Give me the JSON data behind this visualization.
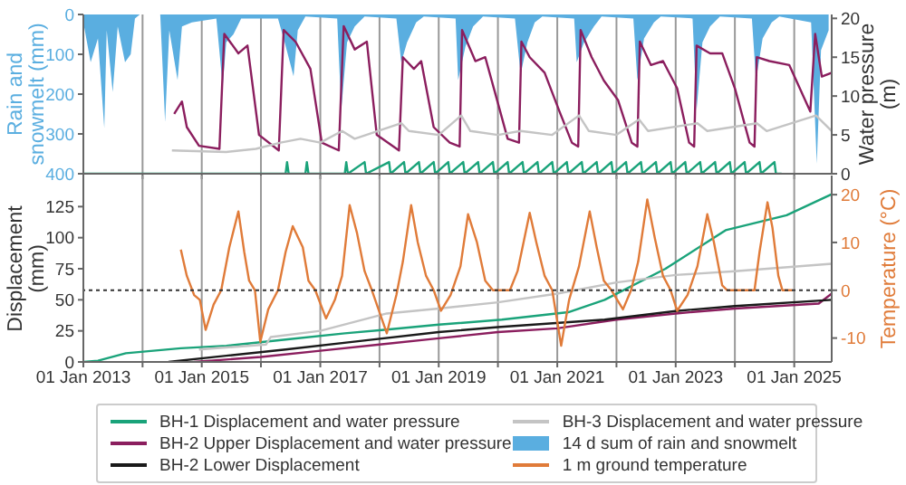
{
  "chart_data": [
    {
      "type": "line",
      "ylabel": "Rain and\nsnowmelt (mm)",
      "y2label": "Water pressure\n(m)",
      "xlim": [
        "2013-01-01",
        "2025-08-20"
      ],
      "xticks": [
        {
          "value": "2013-01-01",
          "label": null
        },
        {
          "value": "2014-01-01",
          "label": null
        },
        {
          "value": "2015-01-01",
          "label": null
        },
        {
          "value": "2016-01-01",
          "label": null
        },
        {
          "value": "2017-01-01",
          "label": null
        },
        {
          "value": "2018-01-01",
          "label": null
        },
        {
          "value": "2019-01-01",
          "label": null
        },
        {
          "value": "2020-01-01",
          "label": null
        },
        {
          "value": "2021-01-01",
          "label": null
        },
        {
          "value": "2022-01-01",
          "label": null
        },
        {
          "value": "2023-01-01",
          "label": null
        },
        {
          "value": "2024-01-01",
          "label": null
        },
        {
          "value": "2025-01-01",
          "label": null
        }
      ],
      "ylim": [
        400,
        0
      ],
      "yticks": [
        0,
        100,
        200,
        300,
        400
      ],
      "y2lim": [
        0,
        20.5
      ],
      "y2ticks": [
        0,
        5,
        10,
        15,
        20
      ],
      "grid": "x",
      "tick_labels": "y",
      "legend": "bottom",
      "series": [
        {
          "type": "area",
          "name": "14 d sum of rain and snowmelt",
          "color": "#5aaee0",
          "x": [
            "2013-01-01",
            "2013-02-15",
            "2013-04-01",
            "2013-05-10",
            "2013-05-25",
            "2013-07-01",
            "2013-08-01",
            "2013-09-15",
            "2013-10-20",
            "2013-11-15",
            "2013-12-15",
            "2014-04-20",
            "2014-05-20",
            "2014-06-15",
            "2014-08-05",
            "2014-09-01",
            "2014-11-01",
            "2015-04-01",
            "2015-05-10",
            "2015-06-01",
            "2015-07-15",
            "2015-09-01",
            "2016-04-15",
            "2016-05-20",
            "2016-07-20",
            "2016-08-15",
            "2016-10-01",
            "2017-04-15",
            "2017-05-10",
            "2017-06-15",
            "2017-08-01",
            "2017-10-01",
            "2018-04-15",
            "2018-05-15",
            "2018-06-20",
            "2018-08-15",
            "2018-10-01",
            "2019-04-15",
            "2019-05-01",
            "2019-06-15",
            "2019-08-01",
            "2019-10-01",
            "2020-04-15",
            "2020-05-20",
            "2020-07-01",
            "2020-08-15",
            "2020-10-01",
            "2021-04-15",
            "2021-05-01",
            "2021-06-15",
            "2021-08-15",
            "2021-10-01",
            "2022-04-15",
            "2022-05-10",
            "2022-06-20",
            "2022-08-20",
            "2022-10-01",
            "2023-04-15",
            "2023-05-10",
            "2023-06-15",
            "2023-08-01",
            "2023-10-01",
            "2024-04-15",
            "2024-05-10",
            "2024-06-20",
            "2024-08-15",
            "2024-10-01",
            "2025-04-15",
            "2025-05-20",
            "2025-06-15",
            "2025-08-01"
          ],
          "values": [
            20,
            120,
            60,
            285,
            40,
            195,
            30,
            120,
            100,
            10,
            0,
            0,
            270,
            40,
            165,
            30,
            20,
            10,
            180,
            70,
            50,
            10,
            10,
            60,
            155,
            40,
            5,
            10,
            240,
            70,
            30,
            5,
            10,
            120,
            70,
            20,
            5,
            10,
            165,
            80,
            30,
            5,
            10,
            150,
            70,
            20,
            5,
            10,
            120,
            70,
            30,
            5,
            10,
            165,
            60,
            20,
            5,
            10,
            240,
            70,
            30,
            5,
            10,
            165,
            60,
            20,
            5,
            20,
            375,
            90,
            40
          ]
        },
        {
          "type": "line",
          "axis": "y2",
          "color": "#8b1e5e",
          "x": [
            "2014-07-15",
            "2014-09-01",
            "2014-10-01",
            "2014-12-15",
            "2015-04-20",
            "2015-05-20",
            "2015-08-15",
            "2015-10-10",
            "2015-12-20",
            "2016-04-20",
            "2016-05-20",
            "2016-08-01",
            "2016-11-01",
            "2017-01-10",
            "2017-04-25",
            "2017-05-25",
            "2017-08-01",
            "2017-10-15",
            "2017-12-15",
            "2018-05-01",
            "2018-05-25",
            "2018-08-01",
            "2018-09-15",
            "2018-12-01",
            "2019-03-10",
            "2019-05-10",
            "2019-05-25",
            "2019-08-15",
            "2019-10-15",
            "2019-12-20",
            "2020-03-01",
            "2020-05-10",
            "2020-05-25",
            "2020-07-15",
            "2020-10-15",
            "2021-01-15",
            "2021-04-01",
            "2021-05-10",
            "2021-05-25",
            "2021-08-01",
            "2021-10-15",
            "2022-01-10",
            "2022-04-05",
            "2022-05-10",
            "2022-05-25",
            "2022-08-01",
            "2022-10-15",
            "2023-01-10",
            "2023-03-25",
            "2023-04-25",
            "2023-05-10",
            "2023-08-01",
            "2023-10-15",
            "2024-01-01",
            "2024-04-01",
            "2024-05-01",
            "2024-05-15",
            "2024-08-01",
            "2024-12-01",
            "2025-04-10",
            "2025-05-10",
            "2025-06-20",
            "2025-08-20"
          ],
          "values": [
            7.7,
            9.3,
            6,
            3.6,
            3.2,
            18,
            15.5,
            16.5,
            5,
            3,
            18.5,
            17,
            13.5,
            4,
            3,
            19,
            16,
            17,
            5,
            3,
            15,
            13.5,
            14.5,
            6,
            4,
            3.5,
            18.5,
            14.5,
            15,
            10,
            4.5,
            4,
            17,
            15,
            13,
            8,
            4,
            3.5,
            18.5,
            15,
            12,
            9.5,
            4,
            3.5,
            17,
            14,
            14.5,
            11,
            4,
            3.5,
            16.5,
            15.5,
            15.5,
            11,
            4,
            3.5,
            15,
            14.5,
            14,
            8,
            18,
            12.5,
            13
          ]
        },
        {
          "type": "line",
          "axis": "y2",
          "color": "#c4c4c4",
          "x": [
            "2014-07-01",
            "2015-06-01",
            "2015-12-01",
            "2016-05-01",
            "2016-09-01",
            "2017-01-01",
            "2017-05-15",
            "2017-08-01",
            "2018-05-15",
            "2018-07-01",
            "2019-01-01",
            "2019-05-20",
            "2019-07-15",
            "2020-01-01",
            "2020-05-20",
            "2020-12-01",
            "2021-05-15",
            "2021-07-15",
            "2022-01-01",
            "2022-05-20",
            "2022-07-15",
            "2023-05-15",
            "2023-07-15",
            "2024-05-15",
            "2024-07-15",
            "2025-05-15",
            "2025-08-20"
          ],
          "values": [
            3,
            2.8,
            3.2,
            4,
            4.5,
            4,
            5.5,
            4.5,
            6.5,
            5.5,
            5,
            7.5,
            5.5,
            5,
            5.5,
            5,
            7.5,
            5.5,
            5,
            7,
            5.5,
            6.5,
            5.5,
            6.5,
            5.5,
            7.5,
            5.5
          ]
        },
        {
          "type": "line",
          "axis": "y2",
          "color": "#1aa37a",
          "x": [
            "2013-01-01",
            "2016-06-01",
            "2016-06-10",
            "2016-06-20",
            "2016-10-01",
            "2016-10-10",
            "2016-10-20",
            "2017-06-01",
            "2017-06-10",
            "2017-06-20",
            "2017-10-01",
            "2017-10-10",
            "2018-03-01",
            "2018-03-10",
            "2018-06-01",
            "2018-06-10",
            "2018-09-01",
            "2018-09-10",
            "2018-12-01",
            "2018-12-10",
            "2019-03-01",
            "2019-03-10",
            "2019-06-01",
            "2019-06-10",
            "2019-09-01",
            "2019-09-10",
            "2019-12-01",
            "2019-12-10",
            "2020-03-01",
            "2020-03-10",
            "2020-06-01",
            "2020-06-10",
            "2020-09-01",
            "2020-09-10",
            "2020-12-01",
            "2020-12-10",
            "2021-03-01",
            "2021-03-10",
            "2021-06-01",
            "2021-06-10",
            "2021-09-01",
            "2021-09-10",
            "2021-12-01",
            "2021-12-10",
            "2022-03-01",
            "2022-03-10",
            "2022-06-01",
            "2022-06-10",
            "2022-09-01",
            "2022-09-10",
            "2022-12-01",
            "2022-12-10",
            "2023-03-01",
            "2023-03-10",
            "2023-06-01",
            "2023-06-10",
            "2023-09-01",
            "2023-09-10",
            "2023-12-01",
            "2023-12-10",
            "2024-03-01",
            "2024-03-10",
            "2024-06-01",
            "2024-06-10",
            "2024-09-01",
            "2024-09-10",
            "2024-10-15"
          ],
          "values": [
            0,
            0,
            1.5,
            0,
            0,
            1.5,
            0,
            0,
            1.5,
            0,
            1.5,
            0,
            1.5,
            0,
            1.5,
            0,
            1.5,
            0,
            1.5,
            0,
            1.5,
            0,
            1.5,
            0,
            1.5,
            0,
            1.5,
            0,
            1.5,
            0,
            1.5,
            0,
            1.5,
            0,
            1.5,
            0,
            1.5,
            0,
            1.5,
            0,
            1.5,
            0,
            1.5,
            0,
            1.5,
            0,
            1.5,
            0,
            1.5,
            0,
            1.5,
            0,
            1.5,
            0,
            1.5,
            0,
            1.5,
            0,
            1.5,
            0,
            1.5,
            0,
            1.5,
            0,
            1.5,
            0,
            0
          ]
        }
      ]
    },
    {
      "type": "line",
      "ylabel": "Displacement\n(mm)",
      "y2label": "Temperature (°C)",
      "xlim": [
        "2013-01-01",
        "2025-08-20"
      ],
      "xticks": [
        {
          "value": "2013-01-01",
          "label": "01 Jan 2013"
        },
        {
          "value": "2014-01-01",
          "label": null
        },
        {
          "value": "2015-01-01",
          "label": "01 Jan 2015"
        },
        {
          "value": "2016-01-01",
          "label": null
        },
        {
          "value": "2017-01-01",
          "label": "01 Jan 2017"
        },
        {
          "value": "2018-01-01",
          "label": null
        },
        {
          "value": "2019-01-01",
          "label": "01 Jan 2019"
        },
        {
          "value": "2020-01-01",
          "label": null
        },
        {
          "value": "2021-01-01",
          "label": "01 Jan 2021"
        },
        {
          "value": "2022-01-01",
          "label": null
        },
        {
          "value": "2023-01-01",
          "label": "01 Jan 2023"
        },
        {
          "value": "2024-01-01",
          "label": null
        },
        {
          "value": "2025-01-01",
          "label": "01 Jan 2025"
        }
      ],
      "ylim": [
        0,
        150
      ],
      "yticks": [
        0,
        25,
        50,
        75,
        100,
        125
      ],
      "y2lim": [
        -15,
        24
      ],
      "y2ticks": [
        -10,
        0,
        10,
        20
      ],
      "grid": "x",
      "legend": "bottom",
      "ref_lines": [
        {
          "axis": "y2",
          "value": 0,
          "color": "#333333",
          "line_style": "dotted"
        }
      ],
      "series": [
        {
          "name": "BH-1 Displacement and water pressure",
          "color": "#1aa37a",
          "x": [
            "2013-01-01",
            "2013-04-01",
            "2013-09-20",
            "2014-08-25",
            "2015-06-01",
            "2016-06-01",
            "2017-06-01",
            "2018-02-15",
            "2019-01-01",
            "2020-01-25",
            "2021-03-10",
            "2021-10-20",
            "2022-10-30",
            "2023-11-05",
            "2024-11-15",
            "2025-08-20"
          ],
          "values": [
            0,
            1,
            7,
            11,
            13,
            18,
            23,
            26,
            30,
            34,
            40,
            50,
            75,
            106,
            118,
            135
          ]
        },
        {
          "name": "BH-2 Upper Displacement and water pressure",
          "color": "#8b1e5e",
          "x": [
            "2014-11-15",
            "2016-01-01",
            "2017-01-01",
            "2018-01-01",
            "2019-01-01",
            "2020-01-01",
            "2021-01-01",
            "2022-01-01",
            "2023-01-01",
            "2024-01-01",
            "2025-06-01",
            "2025-08-20"
          ],
          "values": [
            0,
            4,
            9,
            14,
            19,
            24,
            27,
            34,
            39,
            43,
            47,
            55
          ]
        },
        {
          "name": "BH-2 Lower Displacement",
          "color": "#1a1a1a",
          "x": [
            "2014-06-10",
            "2015-06-01",
            "2016-06-01",
            "2017-09-15",
            "2019-01-01",
            "2020-01-01",
            "2021-10-20",
            "2023-01-01",
            "2024-01-01",
            "2025-08-20"
          ],
          "values": [
            0,
            5,
            10,
            17,
            24,
            28,
            34,
            41,
            45,
            50
          ]
        },
        {
          "name": "BH-3 Displacement and water pressure",
          "color": "#c4c4c4",
          "x": [
            "2014-12-15",
            "2016-02-01",
            "2016-03-01",
            "2017-01-01",
            "2018-02-15",
            "2019-01-01",
            "2020-01-01",
            "2021-01-01",
            "2022-01-01",
            "2023-01-01",
            "2024-01-01",
            "2025-08-20"
          ],
          "values": [
            10,
            14,
            20,
            25,
            39,
            43,
            48,
            55,
            64,
            70,
            73,
            79
          ]
        },
        {
          "name": "1 m ground temperature",
          "axis": "y2",
          "color": "#e07b39",
          "x": [
            "2014-08-25",
            "2014-10-01",
            "2014-11-15",
            "2014-12-20",
            "2015-01-25",
            "2015-03-15",
            "2015-05-01",
            "2015-06-20",
            "2015-08-15",
            "2015-09-20",
            "2015-10-20",
            "2015-11-25",
            "2015-12-28",
            "2016-02-15",
            "2016-04-15",
            "2016-06-01",
            "2016-07-15",
            "2016-09-15",
            "2016-10-20",
            "2016-12-01",
            "2017-02-05",
            "2017-04-01",
            "2017-05-15",
            "2017-07-01",
            "2017-08-15",
            "2017-10-01",
            "2017-11-15",
            "2018-02-15",
            "2018-04-15",
            "2018-05-25",
            "2018-07-15",
            "2018-08-25",
            "2018-10-15",
            "2018-12-01",
            "2019-01-15",
            "2019-03-15",
            "2019-05-15",
            "2019-07-01",
            "2019-08-25",
            "2019-10-15",
            "2019-12-01",
            "2020-03-15",
            "2020-05-01",
            "2020-07-15",
            "2020-08-25",
            "2020-10-15",
            "2020-12-01",
            "2021-01-25",
            "2021-03-15",
            "2021-05-15",
            "2021-07-20",
            "2021-09-01",
            "2021-10-15",
            "2021-12-01",
            "2022-02-10",
            "2022-04-01",
            "2022-05-15",
            "2022-07-10",
            "2022-08-25",
            "2022-10-15",
            "2022-12-01",
            "2023-01-10",
            "2023-03-15",
            "2023-05-15",
            "2023-07-15",
            "2023-08-25",
            "2023-10-15",
            "2023-11-15",
            "2024-05-01",
            "2024-06-01",
            "2024-07-20",
            "2024-08-20",
            "2024-09-25",
            "2024-10-20",
            "2024-12-20"
          ],
          "values": [
            8.5,
            3,
            -1,
            -2,
            -8.3,
            -3,
            0,
            9,
            16.5,
            8,
            2,
            0,
            -10.8,
            -4,
            0,
            8,
            13.4,
            9,
            2,
            0,
            -5.9,
            -2,
            3,
            17.8,
            12,
            4,
            0,
            -9,
            -1,
            6,
            17.8,
            10,
            3,
            0,
            -4.3,
            -1,
            5,
            15.9,
            10,
            2,
            0,
            0,
            4,
            16.2,
            10,
            3,
            0,
            -11.6,
            -2,
            5,
            16.5,
            9,
            2,
            0,
            -4,
            0,
            6,
            19,
            11,
            3,
            0,
            -4.3,
            -1,
            5,
            15.9,
            10,
            1,
            0,
            0,
            8,
            18.4,
            13,
            3,
            0,
            0
          ]
        }
      ]
    }
  ]
}
